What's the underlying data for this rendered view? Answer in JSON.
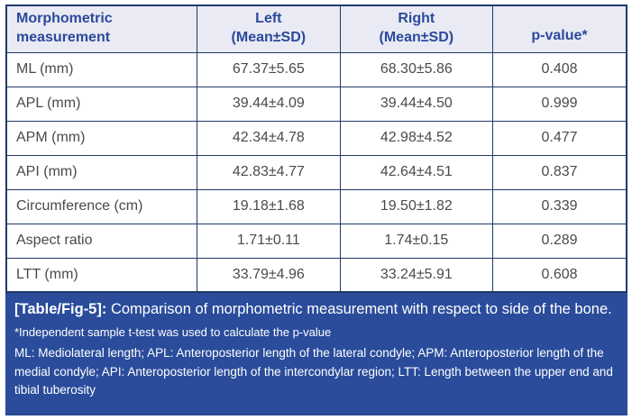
{
  "table": {
    "headers": [
      {
        "lines": [
          "Morphometric",
          "measurement"
        ]
      },
      {
        "lines": [
          "Left",
          "(Mean±SD)"
        ]
      },
      {
        "lines": [
          "Right",
          "(Mean±SD)"
        ]
      },
      {
        "lines": [
          "p-value*"
        ]
      }
    ],
    "rows": [
      {
        "label": "ML (mm)",
        "left": "67.37±5.65",
        "right": "68.30±5.86",
        "p": "0.408"
      },
      {
        "label": "APL (mm)",
        "left": "39.44±4.09",
        "right": "39.44±4.50",
        "p": "0.999"
      },
      {
        "label": "APM (mm)",
        "left": "42.34±4.78",
        "right": "42.98±4.52",
        "p": "0.477"
      },
      {
        "label": "API (mm)",
        "left": "42.83±4.77",
        "right": "42.64±4.51",
        "p": "0.837"
      },
      {
        "label": "Circumference (cm)",
        "left": "19.18±1.68",
        "right": "19.50±1.82",
        "p": "0.339"
      },
      {
        "label": "Aspect ratio",
        "left": "1.71±0.11",
        "right": "1.74±0.15",
        "p": "0.289"
      },
      {
        "label": "LTT (mm)",
        "left": "33.79±4.96",
        "right": "33.24±5.91",
        "p": "0.608"
      }
    ]
  },
  "caption": {
    "tag": "[Table/Fig-5]:",
    "text": " Comparison of morphometric measurement with respect to side of the bone.",
    "footnote_test": "*Independent sample t-test was used to calculate the p-value",
    "footnote_abbrev": "ML: Mediolateral length; APL: Anteroposterior length of the lateral condyle; APM: Anteroposterior length of the medial condyle; API: Anteroposterior length of the intercondylar region; LTT: Length between the upper end and tibial tuberosity"
  },
  "colors": {
    "caption_bg": "#2a4c9b",
    "header_bg": "#e9eaf3",
    "header_text": "#2b4a9c",
    "grid_border": "#1f3a68",
    "body_text": "#4a4a4a",
    "caption_text": "#ffffff"
  },
  "chart_data": {
    "type": "table",
    "title": "[Table/Fig-5]: Comparison of morphometric measurement with respect to side of the bone.",
    "columns": [
      "Morphometric measurement",
      "Left (Mean±SD)",
      "Right (Mean±SD)",
      "p-value*"
    ],
    "rows": [
      [
        "ML (mm)",
        "67.37±5.65",
        "68.30±5.86",
        "0.408"
      ],
      [
        "APL (mm)",
        "39.44±4.09",
        "39.44±4.50",
        "0.999"
      ],
      [
        "APM (mm)",
        "42.34±4.78",
        "42.98±4.52",
        "0.477"
      ],
      [
        "API (mm)",
        "42.83±4.77",
        "42.64±4.51",
        "0.837"
      ],
      [
        "Circumference (cm)",
        "19.18±1.68",
        "19.50±1.82",
        "0.339"
      ],
      [
        "Aspect ratio",
        "1.71±0.11",
        "1.74±0.15",
        "0.289"
      ],
      [
        "LTT (mm)",
        "33.79±4.96",
        "33.24±5.91",
        "0.608"
      ]
    ]
  }
}
